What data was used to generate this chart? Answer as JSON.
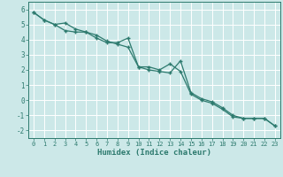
{
  "xlabel": "Humidex (Indice chaleur)",
  "bg_color": "#cce8e8",
  "grid_color": "#ffffff",
  "line_color": "#2d7a6e",
  "xlim": [
    -0.5,
    23.5
  ],
  "ylim": [
    -2.5,
    6.5
  ],
  "yticks": [
    -2,
    -1,
    0,
    1,
    2,
    3,
    4,
    5,
    6
  ],
  "xticks": [
    0,
    1,
    2,
    3,
    4,
    5,
    6,
    7,
    8,
    9,
    10,
    11,
    12,
    13,
    14,
    15,
    16,
    17,
    18,
    19,
    20,
    21,
    22,
    23
  ],
  "line1_x": [
    0,
    1,
    2,
    3,
    4,
    5,
    6,
    7,
    8,
    9,
    10,
    11,
    12,
    13,
    14,
    15,
    16,
    17,
    18,
    19,
    20,
    21,
    22,
    23
  ],
  "line1_y": [
    5.8,
    5.3,
    5.0,
    5.1,
    4.7,
    4.5,
    4.3,
    3.9,
    3.7,
    3.5,
    2.2,
    2.0,
    1.9,
    1.8,
    2.6,
    0.5,
    0.1,
    -0.1,
    -0.5,
    -1.0,
    -1.2,
    -1.2,
    -1.2,
    -1.7
  ],
  "line2_x": [
    0,
    1,
    2,
    3,
    4,
    5,
    6,
    7,
    8,
    9,
    10,
    11,
    12,
    13,
    14,
    15,
    16,
    17,
    18,
    19,
    20,
    21,
    22,
    23
  ],
  "line2_y": [
    5.8,
    5.3,
    5.0,
    4.6,
    4.5,
    4.5,
    4.1,
    3.8,
    3.8,
    4.1,
    2.2,
    2.2,
    2.0,
    2.4,
    1.9,
    0.4,
    0.0,
    -0.2,
    -0.6,
    -1.1,
    -1.2,
    -1.2,
    -1.2,
    -1.7
  ],
  "tick_fontsize": 5.0,
  "xlabel_fontsize": 6.5
}
